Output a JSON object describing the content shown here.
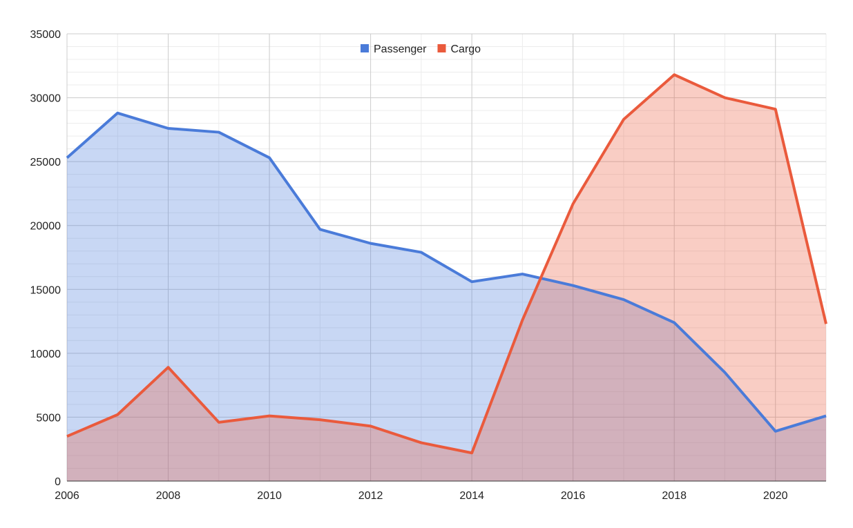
{
  "chart_data": {
    "type": "area",
    "title": "",
    "xlabel": "",
    "ylabel": "",
    "x": [
      2006,
      2007,
      2008,
      2009,
      2010,
      2011,
      2012,
      2013,
      2014,
      2015,
      2016,
      2017,
      2018,
      2019,
      2020,
      2021
    ],
    "xlim": [
      2006,
      2021
    ],
    "ylim": [
      0,
      35000
    ],
    "x_ticks": [
      "2006",
      "2008",
      "2010",
      "2012",
      "2014",
      "2016",
      "2018",
      "2020"
    ],
    "y_ticks": [
      "0",
      "5000",
      "10000",
      "15000",
      "20000",
      "25000",
      "30000",
      "35000"
    ],
    "grid": true,
    "legend_position": "top-center",
    "series": [
      {
        "name": "Passenger",
        "color": "#4a7bd9",
        "fill": "#c8d7f4",
        "values": [
          25300,
          28800,
          27600,
          27300,
          25300,
          19700,
          18600,
          17900,
          15600,
          16200,
          15300,
          14200,
          12400,
          8500,
          3900,
          5100
        ]
      },
      {
        "name": "Cargo",
        "color": "#ea5a3c",
        "fill": "#fccbc2",
        "values": [
          3500,
          5200,
          8900,
          4600,
          5100,
          4800,
          4300,
          3000,
          2200,
          12600,
          21700,
          28300,
          31800,
          30000,
          29100,
          12300
        ]
      }
    ]
  }
}
